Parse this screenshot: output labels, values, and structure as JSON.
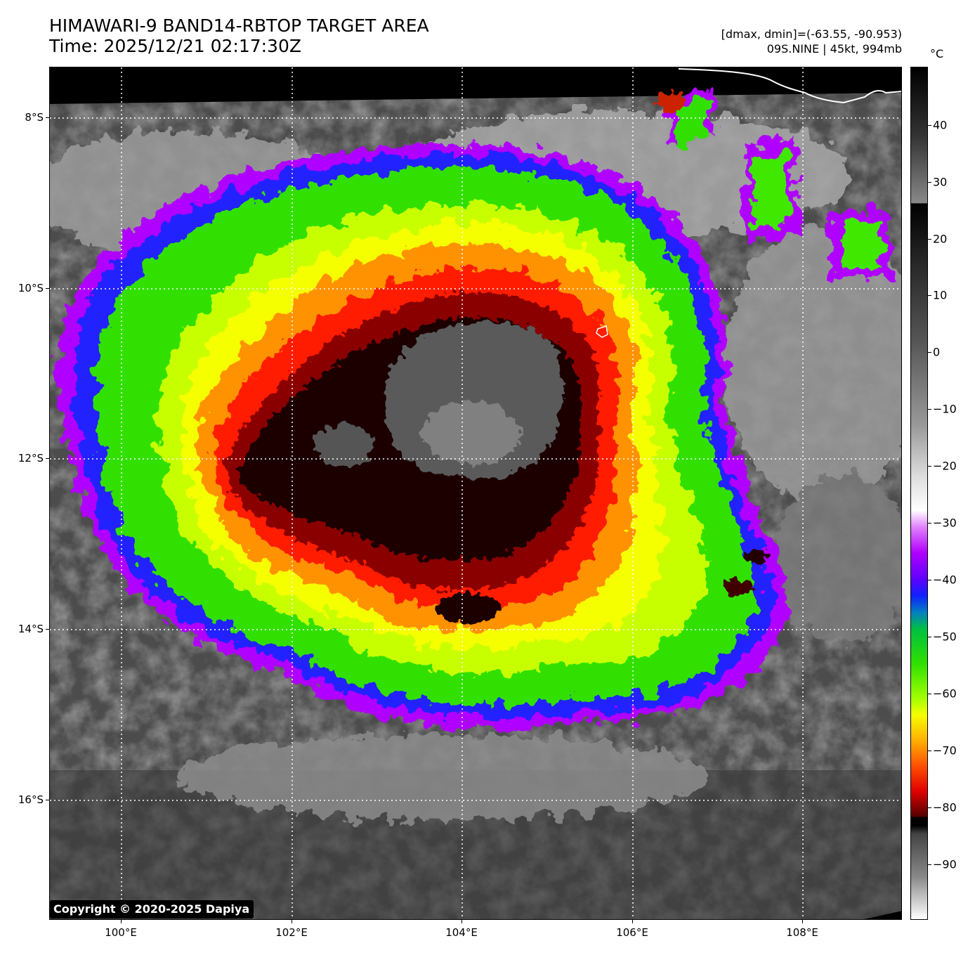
{
  "title": {
    "line1": "HIMAWARI-9 BAND14-RBTOP TARGET AREA",
    "line2": "Time: 2025/12/21 02:17:30Z"
  },
  "info": {
    "line1": "[dmax, dmin]=(-63.55, -90.953)",
    "line2": "09S.NINE | 45kt, 994mb"
  },
  "axes": {
    "lat_labels": [
      "8°S",
      "10°S",
      "12°S",
      "14°S",
      "16°S"
    ],
    "lon_labels": [
      "100°E",
      "102°E",
      "104°E",
      "106°E",
      "108°E"
    ]
  },
  "colorbar": {
    "unit": "°C",
    "labels": [
      "40",
      "30",
      "20",
      "10",
      "0",
      "−10",
      "−20",
      "−30",
      "−40",
      "−50",
      "−60",
      "−70",
      "−80",
      "−90"
    ]
  },
  "copyright": "Copyright © 2020-2025 Dapiya",
  "colors": {
    "cold_top": "#000000",
    "dark_red": "#8b0000",
    "red": "#ff2000",
    "orange": "#ff9a00",
    "yellow": "#f4ff00",
    "green": "#38e800",
    "blue": "#1020ff",
    "violet": "#b000ff",
    "gray_background": "#4a4a4a"
  }
}
